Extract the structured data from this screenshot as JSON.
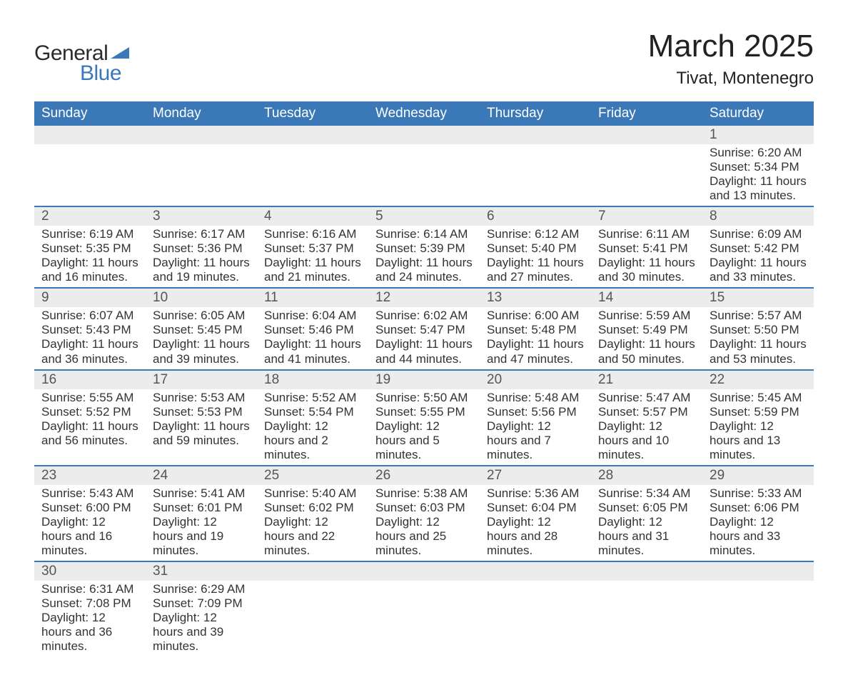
{
  "brand": {
    "word1": "General",
    "word2": "Blue",
    "accent_color": "#3b78b8",
    "text_color": "#2b2b2b"
  },
  "header": {
    "title": "March 2025",
    "location": "Tivat, Montenegro"
  },
  "colors": {
    "header_bg": "#3b78b8",
    "header_text": "#ffffff",
    "stripe_bg": "#ececec",
    "border": "#3b78b8",
    "body_text": "#333333",
    "page_bg": "#ffffff"
  },
  "typography": {
    "title_fontsize": 44,
    "subtitle_fontsize": 24,
    "th_fontsize": 19,
    "daynum_fontsize": 19,
    "data_fontsize": 17
  },
  "weekdays": [
    "Sunday",
    "Monday",
    "Tuesday",
    "Wednesday",
    "Thursday",
    "Friday",
    "Saturday"
  ],
  "weeks": [
    [
      null,
      null,
      null,
      null,
      null,
      null,
      {
        "n": "1",
        "sunrise": "Sunrise: 6:20 AM",
        "sunset": "Sunset: 5:34 PM",
        "daylight": "Daylight: 11 hours and 13 minutes."
      }
    ],
    [
      {
        "n": "2",
        "sunrise": "Sunrise: 6:19 AM",
        "sunset": "Sunset: 5:35 PM",
        "daylight": "Daylight: 11 hours and 16 minutes."
      },
      {
        "n": "3",
        "sunrise": "Sunrise: 6:17 AM",
        "sunset": "Sunset: 5:36 PM",
        "daylight": "Daylight: 11 hours and 19 minutes."
      },
      {
        "n": "4",
        "sunrise": "Sunrise: 6:16 AM",
        "sunset": "Sunset: 5:37 PM",
        "daylight": "Daylight: 11 hours and 21 minutes."
      },
      {
        "n": "5",
        "sunrise": "Sunrise: 6:14 AM",
        "sunset": "Sunset: 5:39 PM",
        "daylight": "Daylight: 11 hours and 24 minutes."
      },
      {
        "n": "6",
        "sunrise": "Sunrise: 6:12 AM",
        "sunset": "Sunset: 5:40 PM",
        "daylight": "Daylight: 11 hours and 27 minutes."
      },
      {
        "n": "7",
        "sunrise": "Sunrise: 6:11 AM",
        "sunset": "Sunset: 5:41 PM",
        "daylight": "Daylight: 11 hours and 30 minutes."
      },
      {
        "n": "8",
        "sunrise": "Sunrise: 6:09 AM",
        "sunset": "Sunset: 5:42 PM",
        "daylight": "Daylight: 11 hours and 33 minutes."
      }
    ],
    [
      {
        "n": "9",
        "sunrise": "Sunrise: 6:07 AM",
        "sunset": "Sunset: 5:43 PM",
        "daylight": "Daylight: 11 hours and 36 minutes."
      },
      {
        "n": "10",
        "sunrise": "Sunrise: 6:05 AM",
        "sunset": "Sunset: 5:45 PM",
        "daylight": "Daylight: 11 hours and 39 minutes."
      },
      {
        "n": "11",
        "sunrise": "Sunrise: 6:04 AM",
        "sunset": "Sunset: 5:46 PM",
        "daylight": "Daylight: 11 hours and 41 minutes."
      },
      {
        "n": "12",
        "sunrise": "Sunrise: 6:02 AM",
        "sunset": "Sunset: 5:47 PM",
        "daylight": "Daylight: 11 hours and 44 minutes."
      },
      {
        "n": "13",
        "sunrise": "Sunrise: 6:00 AM",
        "sunset": "Sunset: 5:48 PM",
        "daylight": "Daylight: 11 hours and 47 minutes."
      },
      {
        "n": "14",
        "sunrise": "Sunrise: 5:59 AM",
        "sunset": "Sunset: 5:49 PM",
        "daylight": "Daylight: 11 hours and 50 minutes."
      },
      {
        "n": "15",
        "sunrise": "Sunrise: 5:57 AM",
        "sunset": "Sunset: 5:50 PM",
        "daylight": "Daylight: 11 hours and 53 minutes."
      }
    ],
    [
      {
        "n": "16",
        "sunrise": "Sunrise: 5:55 AM",
        "sunset": "Sunset: 5:52 PM",
        "daylight": "Daylight: 11 hours and 56 minutes."
      },
      {
        "n": "17",
        "sunrise": "Sunrise: 5:53 AM",
        "sunset": "Sunset: 5:53 PM",
        "daylight": "Daylight: 11 hours and 59 minutes."
      },
      {
        "n": "18",
        "sunrise": "Sunrise: 5:52 AM",
        "sunset": "Sunset: 5:54 PM",
        "daylight": "Daylight: 12 hours and 2 minutes."
      },
      {
        "n": "19",
        "sunrise": "Sunrise: 5:50 AM",
        "sunset": "Sunset: 5:55 PM",
        "daylight": "Daylight: 12 hours and 5 minutes."
      },
      {
        "n": "20",
        "sunrise": "Sunrise: 5:48 AM",
        "sunset": "Sunset: 5:56 PM",
        "daylight": "Daylight: 12 hours and 7 minutes."
      },
      {
        "n": "21",
        "sunrise": "Sunrise: 5:47 AM",
        "sunset": "Sunset: 5:57 PM",
        "daylight": "Daylight: 12 hours and 10 minutes."
      },
      {
        "n": "22",
        "sunrise": "Sunrise: 5:45 AM",
        "sunset": "Sunset: 5:59 PM",
        "daylight": "Daylight: 12 hours and 13 minutes."
      }
    ],
    [
      {
        "n": "23",
        "sunrise": "Sunrise: 5:43 AM",
        "sunset": "Sunset: 6:00 PM",
        "daylight": "Daylight: 12 hours and 16 minutes."
      },
      {
        "n": "24",
        "sunrise": "Sunrise: 5:41 AM",
        "sunset": "Sunset: 6:01 PM",
        "daylight": "Daylight: 12 hours and 19 minutes."
      },
      {
        "n": "25",
        "sunrise": "Sunrise: 5:40 AM",
        "sunset": "Sunset: 6:02 PM",
        "daylight": "Daylight: 12 hours and 22 minutes."
      },
      {
        "n": "26",
        "sunrise": "Sunrise: 5:38 AM",
        "sunset": "Sunset: 6:03 PM",
        "daylight": "Daylight: 12 hours and 25 minutes."
      },
      {
        "n": "27",
        "sunrise": "Sunrise: 5:36 AM",
        "sunset": "Sunset: 6:04 PM",
        "daylight": "Daylight: 12 hours and 28 minutes."
      },
      {
        "n": "28",
        "sunrise": "Sunrise: 5:34 AM",
        "sunset": "Sunset: 6:05 PM",
        "daylight": "Daylight: 12 hours and 31 minutes."
      },
      {
        "n": "29",
        "sunrise": "Sunrise: 5:33 AM",
        "sunset": "Sunset: 6:06 PM",
        "daylight": "Daylight: 12 hours and 33 minutes."
      }
    ],
    [
      {
        "n": "30",
        "sunrise": "Sunrise: 6:31 AM",
        "sunset": "Sunset: 7:08 PM",
        "daylight": "Daylight: 12 hours and 36 minutes."
      },
      {
        "n": "31",
        "sunrise": "Sunrise: 6:29 AM",
        "sunset": "Sunset: 7:09 PM",
        "daylight": "Daylight: 12 hours and 39 minutes."
      },
      null,
      null,
      null,
      null,
      null
    ]
  ]
}
